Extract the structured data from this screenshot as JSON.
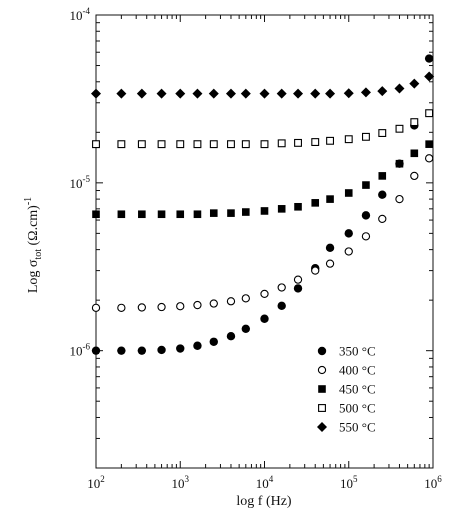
{
  "chart_data": {
    "type": "scatter",
    "title": "",
    "xlabel": "log f (Hz)",
    "ylabel": "Log σ_tot (Ω.cm)^-1",
    "ylabel_parts": {
      "lead": "Log σ",
      "sub": "tot",
      "mid": " (Ω.cm)",
      "sup": "-1"
    },
    "xlabel_parts": {
      "text": "log f (Hz)"
    },
    "x_scale": "log",
    "y_scale": "log",
    "xlim": [
      100,
      1000000
    ],
    "ylim": [
      2e-07,
      0.0001
    ],
    "x_ticks": [
      {
        "value": 100,
        "base": "10",
        "exp": "2"
      },
      {
        "value": 1000,
        "base": "10",
        "exp": "3"
      },
      {
        "value": 10000,
        "base": "10",
        "exp": "4"
      },
      {
        "value": 100000,
        "base": "10",
        "exp": "5"
      },
      {
        "value": 1000000,
        "base": "10",
        "exp": "6"
      }
    ],
    "y_ticks": [
      {
        "value": 1e-06,
        "base": "10",
        "exp": "-6"
      },
      {
        "value": 1e-05,
        "base": "10",
        "exp": "-5"
      },
      {
        "value": 0.0001,
        "base": "10",
        "exp": "-4"
      }
    ],
    "grid": false,
    "legend_position": "lower-right",
    "series": [
      {
        "name": "350 °C",
        "marker": "filled-circle",
        "x": [
          100,
          200,
          350,
          600,
          1000,
          1600,
          2500,
          4000,
          6000,
          10000,
          16000,
          25000,
          40000,
          60000,
          100000,
          160000,
          250000,
          400000,
          600000,
          900000
        ],
        "y": [
          1e-06,
          1e-06,
          1e-06,
          1.01e-06,
          1.03e-06,
          1.07e-06,
          1.13e-06,
          1.22e-06,
          1.35e-06,
          1.55e-06,
          1.85e-06,
          2.35e-06,
          3.1e-06,
          4.1e-06,
          5e-06,
          6.4e-06,
          8.5e-06,
          1.3e-05,
          2.2e-05,
          5.5e-05
        ]
      },
      {
        "name": "400 °C",
        "marker": "open-circle",
        "x": [
          100,
          200,
          350,
          600,
          1000,
          1600,
          2500,
          4000,
          6000,
          10000,
          16000,
          25000,
          40000,
          60000,
          100000,
          160000,
          250000,
          400000,
          600000,
          900000
        ],
        "y": [
          1.8e-06,
          1.8e-06,
          1.81e-06,
          1.82e-06,
          1.84e-06,
          1.87e-06,
          1.91e-06,
          1.97e-06,
          2.05e-06,
          2.18e-06,
          2.38e-06,
          2.65e-06,
          3e-06,
          3.3e-06,
          3.9e-06,
          4.8e-06,
          6.1e-06,
          8e-06,
          1.1e-05,
          1.4e-05
        ]
      },
      {
        "name": "450 °C",
        "marker": "filled-square",
        "x": [
          100,
          200,
          350,
          600,
          1000,
          1600,
          2500,
          4000,
          6000,
          10000,
          16000,
          25000,
          40000,
          60000,
          100000,
          160000,
          250000,
          400000,
          600000,
          900000
        ],
        "y": [
          6.5e-06,
          6.5e-06,
          6.5e-06,
          6.5e-06,
          6.5e-06,
          6.5e-06,
          6.6e-06,
          6.6e-06,
          6.7e-06,
          6.8e-06,
          7e-06,
          7.2e-06,
          7.6e-06,
          8e-06,
          8.7e-06,
          9.7e-06,
          1.1e-05,
          1.3e-05,
          1.5e-05,
          1.7e-05
        ]
      },
      {
        "name": "500 °C",
        "marker": "open-square",
        "x": [
          100,
          200,
          350,
          600,
          1000,
          1600,
          2500,
          4000,
          6000,
          10000,
          16000,
          25000,
          40000,
          60000,
          100000,
          160000,
          250000,
          400000,
          600000,
          900000
        ],
        "y": [
          1.7e-05,
          1.7e-05,
          1.7e-05,
          1.7e-05,
          1.7e-05,
          1.7e-05,
          1.7e-05,
          1.7e-05,
          1.7e-05,
          1.7e-05,
          1.72e-05,
          1.73e-05,
          1.75e-05,
          1.78e-05,
          1.82e-05,
          1.88e-05,
          1.98e-05,
          2.1e-05,
          2.3e-05,
          2.6e-05
        ]
      },
      {
        "name": "550 °C",
        "marker": "filled-diamond",
        "x": [
          100,
          200,
          350,
          600,
          1000,
          1600,
          2500,
          4000,
          6000,
          10000,
          16000,
          25000,
          40000,
          60000,
          100000,
          160000,
          250000,
          400000,
          600000,
          900000
        ],
        "y": [
          3.4e-05,
          3.4e-05,
          3.4e-05,
          3.4e-05,
          3.4e-05,
          3.4e-05,
          3.4e-05,
          3.4e-05,
          3.4e-05,
          3.4e-05,
          3.4e-05,
          3.4e-05,
          3.4e-05,
          3.4e-05,
          3.42e-05,
          3.46e-05,
          3.52e-05,
          3.65e-05,
          3.9e-05,
          4.3e-05
        ]
      }
    ]
  }
}
